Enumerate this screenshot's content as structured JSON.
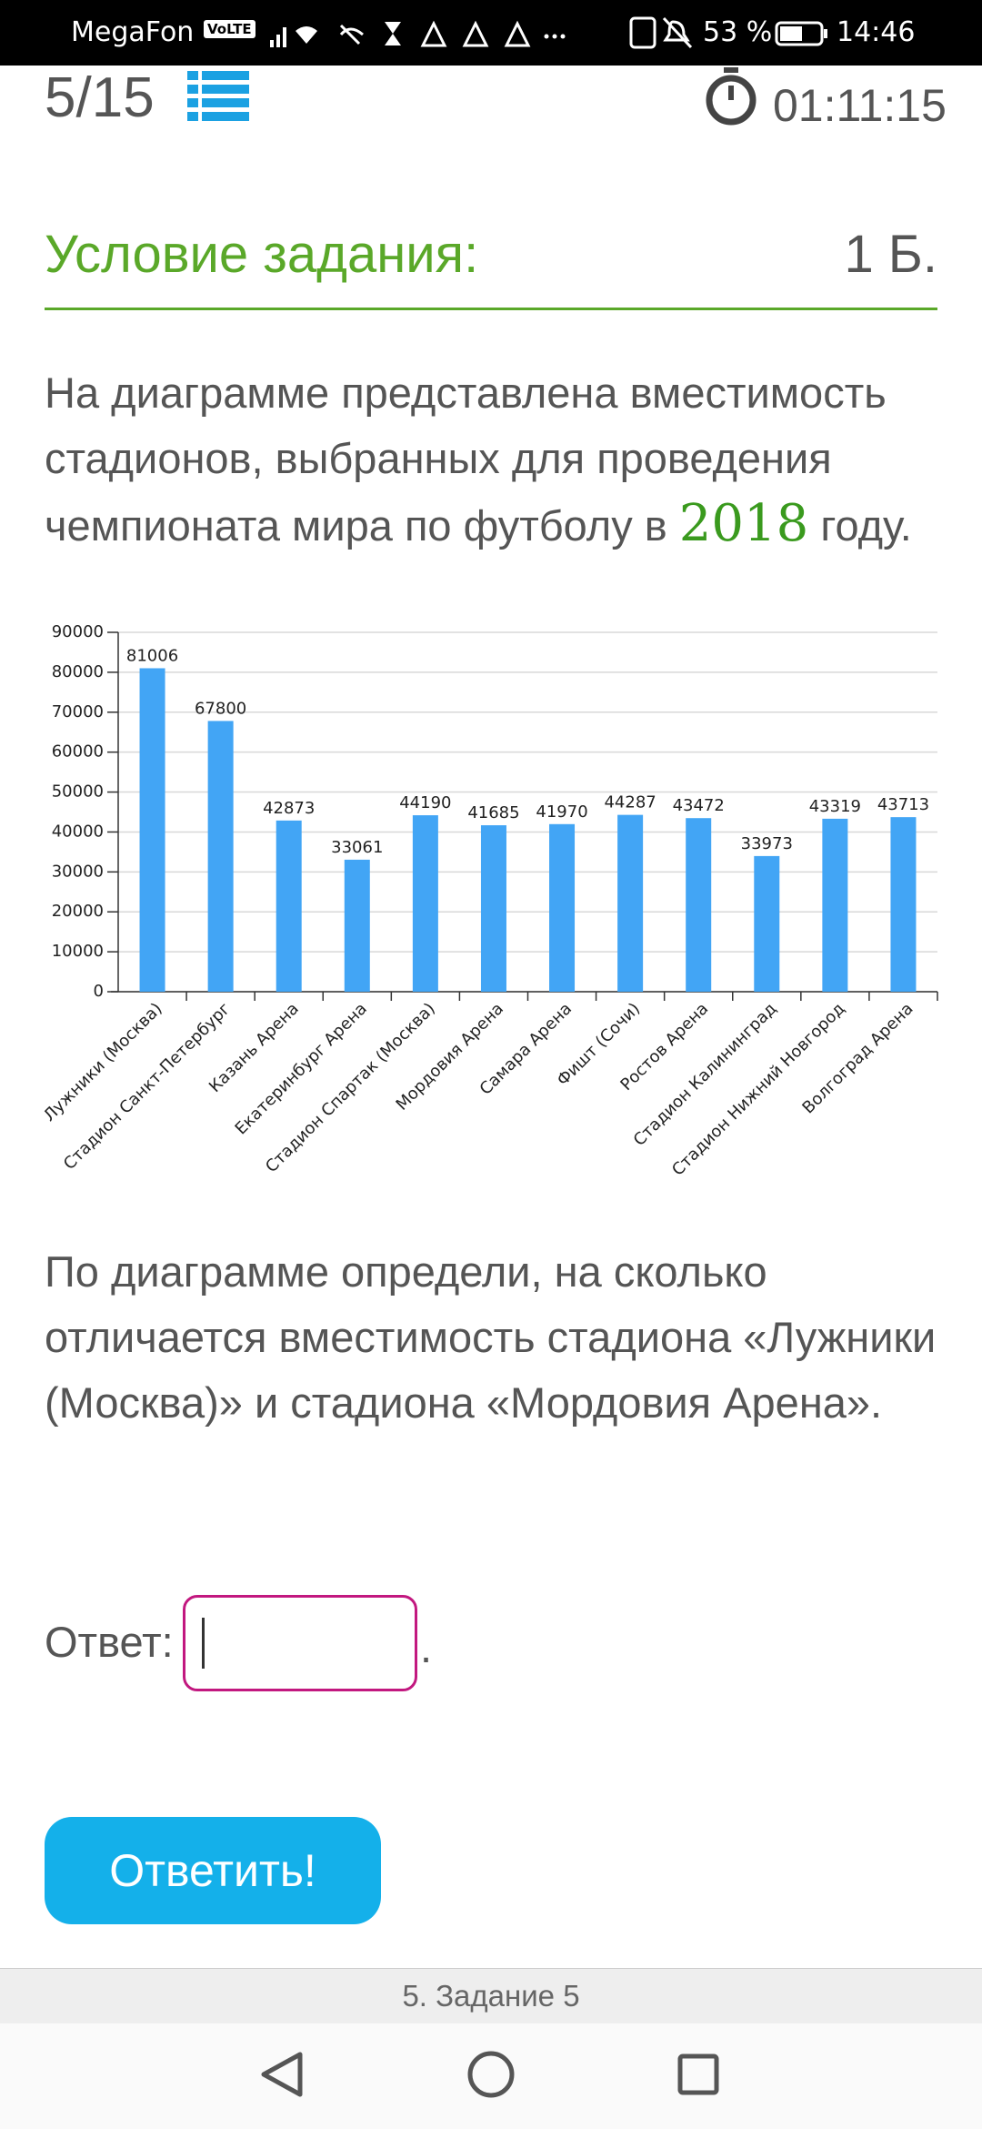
{
  "status_bar": {
    "carrier": "MegaFon",
    "volte": "VoLTE",
    "battery": "53 %",
    "time": "14:46"
  },
  "header": {
    "progress": "5/15",
    "timer": "01:11:15"
  },
  "task": {
    "title": "Условие задания:",
    "points": "1 Б.",
    "intro_start": "На диаграмме представлена вместимость стадионов, выбранных для проведения чемпионата мира по футболу в ",
    "intro_year": "2018",
    "intro_end": " году.",
    "question": "По диаграмме определи, на сколько отличается вместимость стадиона «Лужники (Москва)» и стадиона «Мордовия Арена».",
    "answer_label": "Ответ:",
    "answer_suffix": ".",
    "submit": "Ответить!"
  },
  "chart_data": {
    "type": "bar",
    "categories": [
      "Лужники (Москва)",
      "Стадион Санкт-Петербург",
      "Казань Арена",
      "Екатеринбург Арена",
      "Стадион Спартак (Москва)",
      "Мордовия Арена",
      "Самара Арена",
      "Фишт (Сочи)",
      "Ростов Арена",
      "Стадион Калининград",
      "Стадион Нижний Новгород",
      "Волгоград Арена"
    ],
    "values": [
      81006,
      67800,
      42873,
      33061,
      44190,
      41685,
      41970,
      44287,
      43472,
      33973,
      43319,
      43713
    ],
    "color": "#42a5f5",
    "ylim": [
      0,
      90000
    ],
    "yticks": [
      0,
      10000,
      20000,
      30000,
      40000,
      50000,
      60000,
      70000,
      80000,
      90000
    ],
    "grid": true
  },
  "footer": {
    "label": "5. Задание 5"
  }
}
